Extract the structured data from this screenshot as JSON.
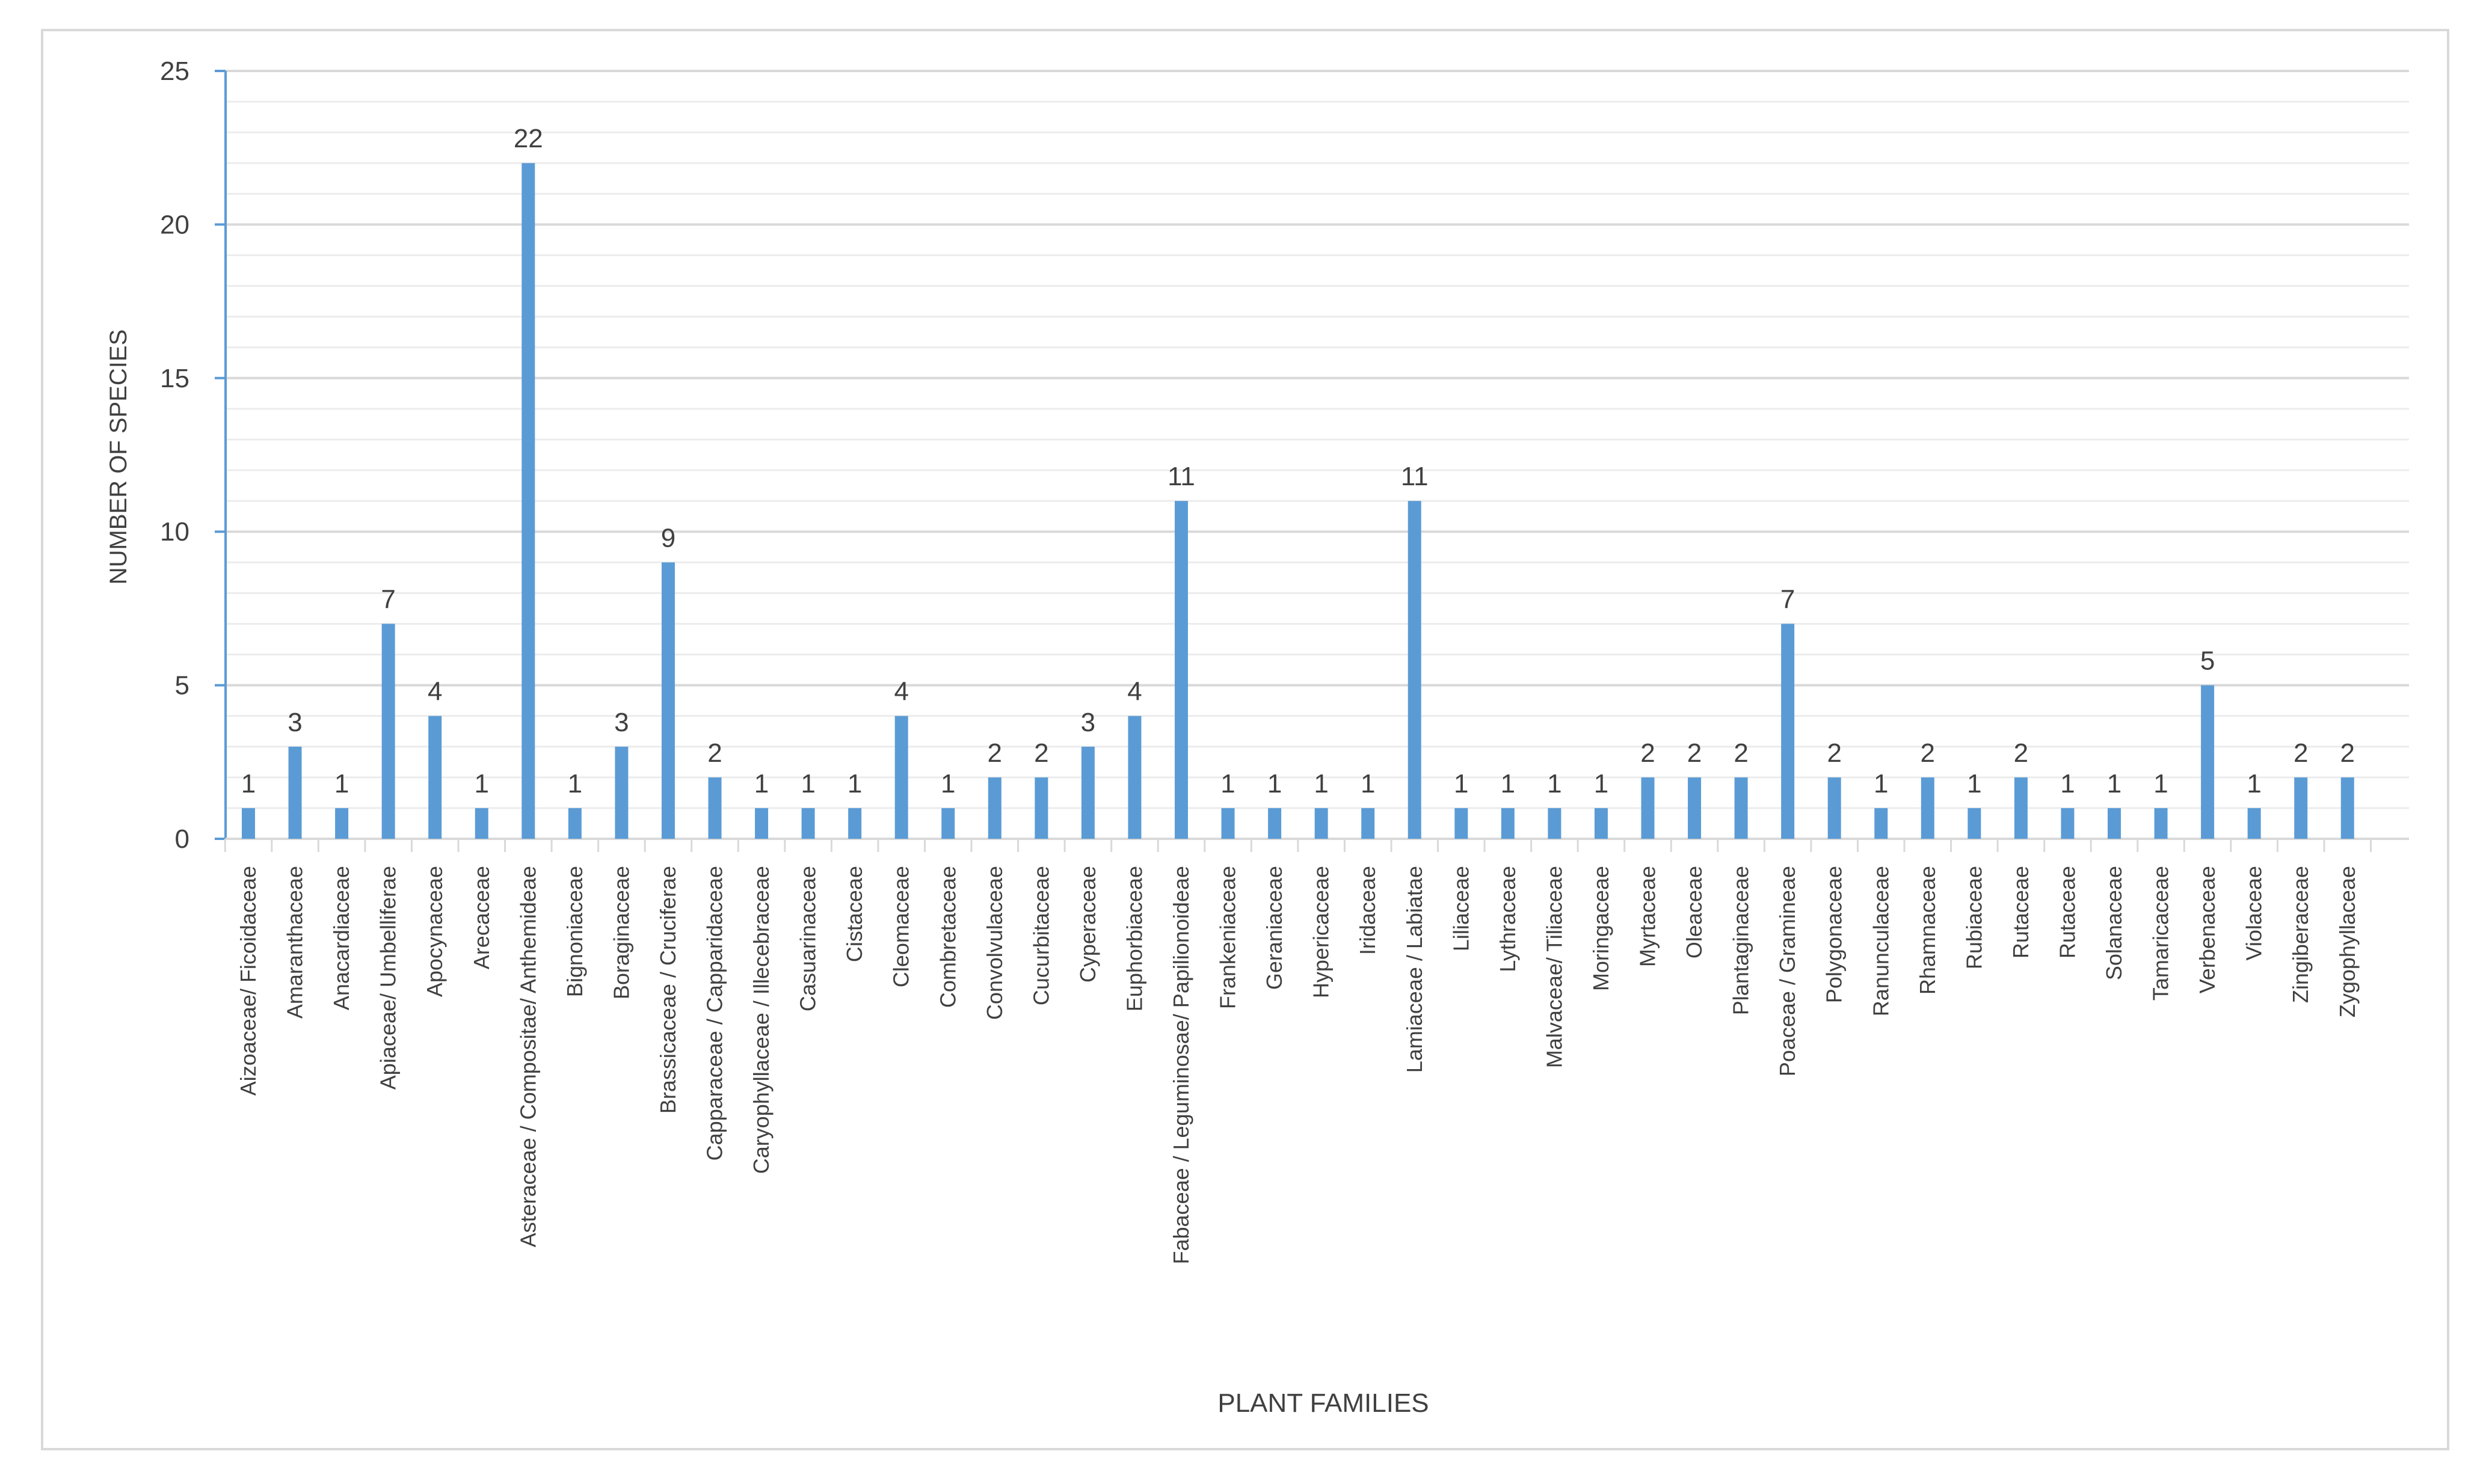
{
  "chart_data": {
    "type": "bar",
    "title": "",
    "xlabel": "PLANT FAMILIES",
    "ylabel": "NUMBER OF SPECIES",
    "ylim": [
      0,
      25
    ],
    "yticks": [
      0,
      5,
      10,
      15,
      20,
      25
    ],
    "grid": "horizontal major and minor",
    "legend": "none",
    "bar_color": "#5b9bd5",
    "axis_color": "#5b9bd5",
    "grid_color": "#d9d9d9",
    "minor_grid_color": "#ececec",
    "text_color": "#404040",
    "categories": [
      "Aizoaceae/ Ficoidaceae",
      "Amaranthaceae",
      "Anacardiaceae",
      "Apiaceae/ Umbelliferae",
      "Apocynaceae",
      "Arecaceae",
      "Asteraceae / Compositae/ Anthemideae",
      "Bignoniaceae",
      "Boraginaceae",
      "Brassicaceae / Cruciferae",
      "Capparaceae / Capparidaceae",
      "Caryophyllaceae / Illecebraceae",
      "Casuarinaceae",
      "Cistaceae",
      "Cleomaceae",
      "Combretaceae",
      "Convolvulaceae",
      "Cucurbitaceae",
      "Cyperaceae",
      "Euphorbiaceae",
      "Fabaceae / Leguminosae/ Papilionoideae",
      "Frankeniaceae",
      "Geraniaceae",
      "Hypericaceae",
      "Iridaceae",
      "Lamiaceae / Labiatae",
      "Liliaceae",
      "Lythraceae",
      "Malvaceae/ Tiliaceae",
      "Moringaceae",
      "Myrtaceae",
      "Oleaceae",
      "Plantaginaceae",
      "Poaceae / Gramineae",
      "Polygonaceae",
      "Ranunculaceae",
      "Rhamnaceae",
      "Rubiaceae",
      "Rutaceae",
      "Rutaceae",
      "Solanaceae",
      "Tamaricaceae",
      "Verbenaceae",
      "Violaceae",
      "Zingiberaceae",
      "Zygophyllaceae"
    ],
    "values": [
      1,
      3,
      1,
      7,
      4,
      1,
      22,
      1,
      3,
      9,
      2,
      1,
      1,
      1,
      4,
      1,
      2,
      2,
      3,
      4,
      11,
      1,
      1,
      1,
      1,
      11,
      1,
      1,
      1,
      1,
      2,
      2,
      2,
      7,
      2,
      1,
      2,
      1,
      2,
      1,
      1,
      1,
      5,
      1,
      2,
      2
    ]
  }
}
